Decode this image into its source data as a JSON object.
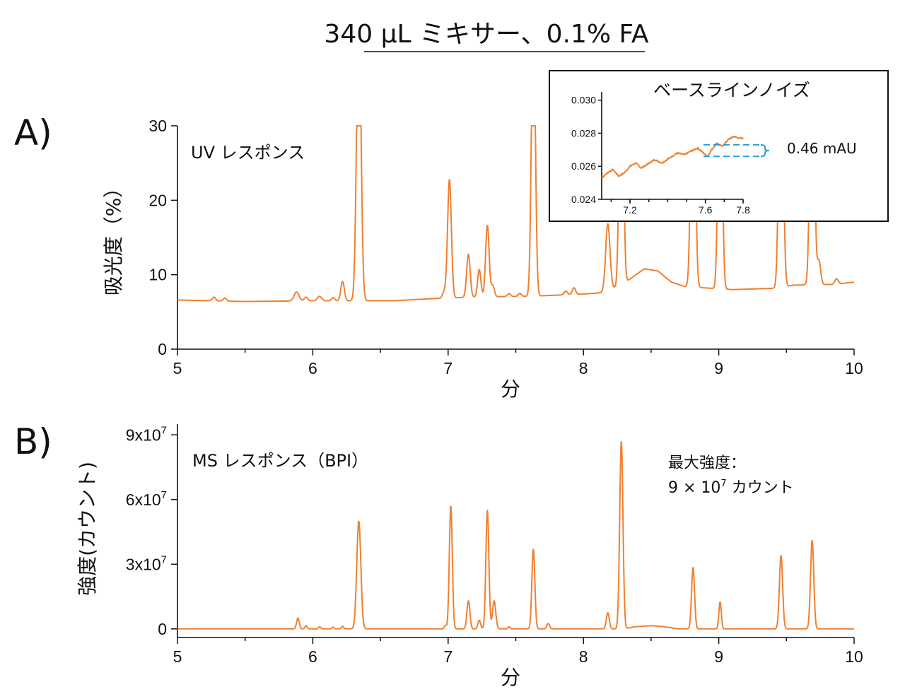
{
  "title": "340 µL ミキサー、0.1% FA",
  "chart_data": [
    {
      "id": "A",
      "panel_label": "A)",
      "type": "line",
      "annotation": "UV レスポンス",
      "xlabel": "分",
      "ylabel": "吸光度（%）",
      "xlim": [
        5,
        10
      ],
      "ylim": [
        0,
        30
      ],
      "xticks": [
        5,
        6,
        7,
        8,
        9,
        10
      ],
      "yticks": [
        0,
        10,
        20,
        30
      ],
      "color": "#f08030",
      "baseline": [
        [
          5.0,
          6.6
        ],
        [
          5.5,
          6.4
        ],
        [
          6.0,
          6.5
        ],
        [
          6.4,
          6.5
        ],
        [
          6.6,
          6.5
        ],
        [
          6.9,
          6.8
        ],
        [
          7.2,
          7.0
        ],
        [
          7.6,
          7.1
        ],
        [
          8.0,
          7.4
        ],
        [
          8.15,
          7.6
        ],
        [
          8.3,
          8.8
        ],
        [
          8.35,
          9.5
        ],
        [
          8.45,
          10.8
        ],
        [
          8.55,
          10.5
        ],
        [
          8.65,
          9.0
        ],
        [
          8.75,
          8.4
        ],
        [
          9.1,
          8.0
        ],
        [
          9.45,
          8.2
        ],
        [
          9.55,
          8.6
        ],
        [
          9.85,
          8.7
        ],
        [
          10.0,
          9.0
        ]
      ],
      "peaks": [
        {
          "rt": 5.27,
          "h": 0.5,
          "w": 0.012
        },
        {
          "rt": 5.35,
          "h": 0.4,
          "w": 0.012
        },
        {
          "rt": 5.88,
          "h": 1.2,
          "w": 0.018
        },
        {
          "rt": 5.95,
          "h": 0.5,
          "w": 0.012
        },
        {
          "rt": 6.05,
          "h": 0.6,
          "w": 0.015
        },
        {
          "rt": 6.15,
          "h": 0.4,
          "w": 0.012
        },
        {
          "rt": 6.22,
          "h": 2.6,
          "w": 0.013
        },
        {
          "rt": 6.34,
          "h": 40,
          "w": 0.016
        },
        {
          "rt": 6.97,
          "h": 0.8,
          "w": 0.012
        },
        {
          "rt": 7.01,
          "h": 15.9,
          "w": 0.014
        },
        {
          "rt": 7.15,
          "h": 5.8,
          "w": 0.013
        },
        {
          "rt": 7.23,
          "h": 3.7,
          "w": 0.012
        },
        {
          "rt": 7.29,
          "h": 9.6,
          "w": 0.013
        },
        {
          "rt": 7.33,
          "h": 1.5,
          "w": 0.012
        },
        {
          "rt": 7.45,
          "h": 0.4,
          "w": 0.012
        },
        {
          "rt": 7.53,
          "h": 0.4,
          "w": 0.012
        },
        {
          "rt": 7.63,
          "h": 40,
          "w": 0.014
        },
        {
          "rt": 7.87,
          "h": 0.5,
          "w": 0.012
        },
        {
          "rt": 7.93,
          "h": 0.9,
          "w": 0.012
        },
        {
          "rt": 8.18,
          "h": 9.0,
          "w": 0.016
        },
        {
          "rt": 8.28,
          "h": 40,
          "w": 0.014
        },
        {
          "rt": 8.81,
          "h": 40,
          "w": 0.015
        },
        {
          "rt": 9.01,
          "h": 40,
          "w": 0.014
        },
        {
          "rt": 9.46,
          "h": 40,
          "w": 0.015
        },
        {
          "rt": 9.69,
          "h": 40,
          "w": 0.015
        },
        {
          "rt": 9.74,
          "h": 3.2,
          "w": 0.013
        },
        {
          "rt": 9.87,
          "h": 0.7,
          "w": 0.013
        }
      ],
      "inset": {
        "title": "ベースラインノイズ",
        "xlim": [
          7.05,
          7.8
        ],
        "ylim": [
          0.024,
          0.0305
        ],
        "xticks": [
          7.2,
          7.6,
          7.8
        ],
        "xtick_labels": [
          "7.2",
          "7.6",
          "7.8"
        ],
        "yticks": [
          0.024,
          0.026,
          0.028,
          0.03
        ],
        "ytick_labels": [
          "0.024",
          "0.026",
          "0.028",
          "0.030"
        ],
        "noise_band": [
          0.0266,
          0.0273
        ],
        "noise_label": "0.46 mAU",
        "noise_color": "#2a9fd8",
        "trace": [
          [
            7.05,
            0.0253
          ],
          [
            7.08,
            0.0256
          ],
          [
            7.11,
            0.0258
          ],
          [
            7.14,
            0.0254
          ],
          [
            7.17,
            0.0256
          ],
          [
            7.2,
            0.026
          ],
          [
            7.23,
            0.0262
          ],
          [
            7.26,
            0.0259
          ],
          [
            7.29,
            0.0261
          ],
          [
            7.33,
            0.0264
          ],
          [
            7.37,
            0.0262
          ],
          [
            7.41,
            0.0265
          ],
          [
            7.45,
            0.0268
          ],
          [
            7.49,
            0.0267
          ],
          [
            7.52,
            0.0269
          ],
          [
            7.56,
            0.0271
          ],
          [
            7.59,
            0.0268
          ],
          [
            7.61,
            0.0266
          ],
          [
            7.64,
            0.0271
          ],
          [
            7.66,
            0.0274
          ],
          [
            7.69,
            0.0272
          ],
          [
            7.72,
            0.0276
          ],
          [
            7.75,
            0.0278
          ],
          [
            7.78,
            0.0277
          ],
          [
            7.8,
            0.0277
          ]
        ]
      }
    },
    {
      "id": "B",
      "panel_label": "B)",
      "type": "line",
      "annotation": "MS レスポンス（BPI）",
      "max_label_line1": "最大強度：",
      "max_label_line2_prefix": "9 × 10",
      "max_label_line2_exp": "7",
      "max_label_line2_suffix": " カウント",
      "xlabel": "分",
      "ylabel": "強度(カウント)",
      "xlim": [
        5,
        10
      ],
      "ylim": [
        -4000000,
        95000000
      ],
      "xticks": [
        5,
        6,
        7,
        8,
        9,
        10
      ],
      "yticks": [
        0,
        30000000,
        60000000,
        90000000
      ],
      "ytick_labels": [
        {
          "base": "0",
          "exp": ""
        },
        {
          "base": "3x10",
          "exp": "7"
        },
        {
          "base": "6x10",
          "exp": "7"
        },
        {
          "base": "9x10",
          "exp": "7"
        }
      ],
      "color": "#f08030",
      "baseline": [
        [
          5.0,
          0
        ],
        [
          8.3,
          0
        ],
        [
          8.38,
          1000000
        ],
        [
          8.5,
          1500000
        ],
        [
          8.6,
          1000000
        ],
        [
          8.7,
          0
        ],
        [
          10.0,
          0
        ]
      ],
      "peaks": [
        {
          "rt": 5.89,
          "h": 5000000,
          "w": 0.01
        },
        {
          "rt": 5.95,
          "h": 1500000,
          "w": 0.008
        },
        {
          "rt": 6.05,
          "h": 1000000,
          "w": 0.008
        },
        {
          "rt": 6.15,
          "h": 800000,
          "w": 0.008
        },
        {
          "rt": 6.22,
          "h": 1200000,
          "w": 0.008
        },
        {
          "rt": 6.34,
          "h": 50000000,
          "w": 0.015
        },
        {
          "rt": 6.98,
          "h": 1500000,
          "w": 0.008
        },
        {
          "rt": 7.02,
          "h": 57000000,
          "w": 0.011
        },
        {
          "rt": 7.15,
          "h": 13000000,
          "w": 0.011
        },
        {
          "rt": 7.23,
          "h": 4000000,
          "w": 0.01
        },
        {
          "rt": 7.29,
          "h": 55000000,
          "w": 0.011
        },
        {
          "rt": 7.34,
          "h": 13000000,
          "w": 0.012
        },
        {
          "rt": 7.45,
          "h": 1000000,
          "w": 0.008
        },
        {
          "rt": 7.63,
          "h": 37000000,
          "w": 0.011
        },
        {
          "rt": 7.74,
          "h": 2500000,
          "w": 0.01
        },
        {
          "rt": 8.18,
          "h": 7500000,
          "w": 0.011
        },
        {
          "rt": 8.28,
          "h": 87000000,
          "w": 0.012
        },
        {
          "rt": 8.81,
          "h": 28500000,
          "w": 0.011
        },
        {
          "rt": 9.01,
          "h": 12500000,
          "w": 0.009
        },
        {
          "rt": 9.46,
          "h": 34000000,
          "w": 0.012
        },
        {
          "rt": 9.69,
          "h": 41000000,
          "w": 0.012
        }
      ]
    }
  ]
}
